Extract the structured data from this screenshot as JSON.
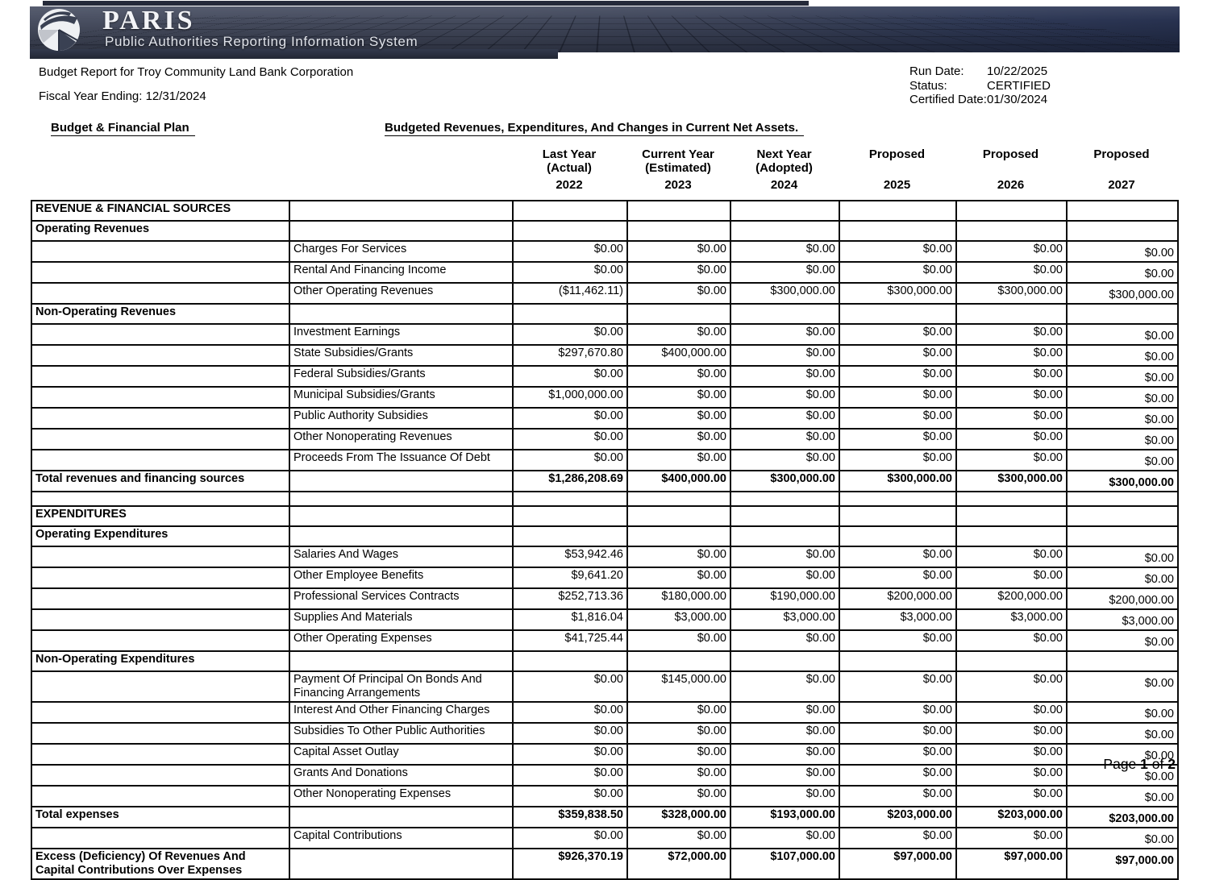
{
  "banner": {
    "title": "PARIS",
    "subtitle": "Public Authorities Reporting Information System",
    "colors": {
      "base": "#454b5d",
      "right_fade": "#283250",
      "grid_line": "#0e111b"
    }
  },
  "report": {
    "title": "Budget Report for Troy Community Land Bank Corporation",
    "fiscal_year": "Fiscal Year Ending: 12/31/2024",
    "meta": [
      {
        "label": "Run Date:",
        "value": "10/22/2025"
      },
      {
        "label": "Status:",
        "value": "CERTIFIED"
      },
      {
        "label": "Certified Date:",
        "value": "01/30/2024"
      }
    ]
  },
  "section": {
    "left_title": "Budget & Financial Plan",
    "right_title": "Budgeted Revenues, Expenditures, And Changes in Current Net Assets."
  },
  "columns": [
    {
      "line1": "Last Year",
      "line2": "(Actual)",
      "year": "2022"
    },
    {
      "line1": "Current Year",
      "line2": "(Estimated)",
      "year": "2023"
    },
    {
      "line1": "Next Year",
      "line2": "(Adopted)",
      "year": "2024"
    },
    {
      "line1": "Proposed",
      "line2": "",
      "year": "2025"
    },
    {
      "line1": "Proposed",
      "line2": "",
      "year": "2026"
    },
    {
      "line1": "Proposed",
      "line2": "",
      "year": "2027"
    }
  ],
  "table": {
    "years": [
      "2022",
      "2023",
      "2024",
      "2025",
      "2026",
      "2027"
    ],
    "rows": [
      {
        "type": "section",
        "label": "REVENUE & FINANCIAL SOURCES"
      },
      {
        "type": "section",
        "label": "Operating Revenues"
      },
      {
        "type": "item",
        "label": "Charges For Services",
        "values": [
          "$0.00",
          "$0.00",
          "$0.00",
          "$0.00",
          "$0.00",
          "$0.00"
        ]
      },
      {
        "type": "item",
        "label": "Rental And Financing Income",
        "values": [
          "$0.00",
          "$0.00",
          "$0.00",
          "$0.00",
          "$0.00",
          "$0.00"
        ]
      },
      {
        "type": "item",
        "label": "Other Operating Revenues",
        "values": [
          "($11,462.11)",
          "$0.00",
          "$300,000.00",
          "$300,000.00",
          "$300,000.00",
          "$300,000.00"
        ]
      },
      {
        "type": "section",
        "label": "Non-Operating Revenues"
      },
      {
        "type": "item",
        "label": "Investment Earnings",
        "values": [
          "$0.00",
          "$0.00",
          "$0.00",
          "$0.00",
          "$0.00",
          "$0.00"
        ]
      },
      {
        "type": "item",
        "label": "State Subsidies/Grants",
        "values": [
          "$297,670.80",
          "$400,000.00",
          "$0.00",
          "$0.00",
          "$0.00",
          "$0.00"
        ]
      },
      {
        "type": "item",
        "label": "Federal Subsidies/Grants",
        "values": [
          "$0.00",
          "$0.00",
          "$0.00",
          "$0.00",
          "$0.00",
          "$0.00"
        ]
      },
      {
        "type": "item",
        "label": "Municipal Subsidies/Grants",
        "values": [
          "$1,000,000.00",
          "$0.00",
          "$0.00",
          "$0.00",
          "$0.00",
          "$0.00"
        ]
      },
      {
        "type": "item",
        "label": "Public Authority Subsidies",
        "values": [
          "$0.00",
          "$0.00",
          "$0.00",
          "$0.00",
          "$0.00",
          "$0.00"
        ]
      },
      {
        "type": "item",
        "label": "Other Nonoperating Revenues",
        "values": [
          "$0.00",
          "$0.00",
          "$0.00",
          "$0.00",
          "$0.00",
          "$0.00"
        ]
      },
      {
        "type": "item",
        "label": "Proceeds From The Issuance Of Debt",
        "values": [
          "$0.00",
          "$0.00",
          "$0.00",
          "$0.00",
          "$0.00",
          "$0.00"
        ]
      },
      {
        "type": "total",
        "label": "Total revenues and financing sources",
        "values": [
          "$1,286,208.69",
          "$400,000.00",
          "$300,000.00",
          "$300,000.00",
          "$300,000.00",
          "$300,000.00"
        ]
      },
      {
        "type": "blank"
      },
      {
        "type": "section",
        "label": "EXPENDITURES"
      },
      {
        "type": "section",
        "label": "Operating Expenditures"
      },
      {
        "type": "item",
        "label": "Salaries And Wages",
        "values": [
          "$53,942.46",
          "$0.00",
          "$0.00",
          "$0.00",
          "$0.00",
          "$0.00"
        ]
      },
      {
        "type": "item",
        "label": "Other Employee Benefits",
        "values": [
          "$9,641.20",
          "$0.00",
          "$0.00",
          "$0.00",
          "$0.00",
          "$0.00"
        ]
      },
      {
        "type": "item",
        "label": "Professional Services Contracts",
        "values": [
          "$252,713.36",
          "$180,000.00",
          "$190,000.00",
          "$200,000.00",
          "$200,000.00",
          "$200,000.00"
        ]
      },
      {
        "type": "item",
        "label": "Supplies And Materials",
        "values": [
          "$1,816.04",
          "$3,000.00",
          "$3,000.00",
          "$3,000.00",
          "$3,000.00",
          "$3,000.00"
        ]
      },
      {
        "type": "item",
        "label": "Other Operating Expenses",
        "values": [
          "$41,725.44",
          "$0.00",
          "$0.00",
          "$0.00",
          "$0.00",
          "$0.00"
        ]
      },
      {
        "type": "section",
        "label": "Non-Operating Expenditures"
      },
      {
        "type": "item",
        "label": "Payment Of Principal On Bonds And Financing Arrangements",
        "values": [
          "$0.00",
          "$145,000.00",
          "$0.00",
          "$0.00",
          "$0.00",
          "$0.00"
        ]
      },
      {
        "type": "item",
        "label": "Interest And Other Financing Charges",
        "values": [
          "$0.00",
          "$0.00",
          "$0.00",
          "$0.00",
          "$0.00",
          "$0.00"
        ]
      },
      {
        "type": "item",
        "label": "Subsidies To Other Public Authorities",
        "values": [
          "$0.00",
          "$0.00",
          "$0.00",
          "$0.00",
          "$0.00",
          "$0.00"
        ]
      },
      {
        "type": "item",
        "label": "Capital Asset Outlay",
        "values": [
          "$0.00",
          "$0.00",
          "$0.00",
          "$0.00",
          "$0.00",
          "$0.00"
        ]
      },
      {
        "type": "item",
        "label": "Grants And Donations",
        "values": [
          "$0.00",
          "$0.00",
          "$0.00",
          "$0.00",
          "$0.00",
          "$0.00"
        ]
      },
      {
        "type": "item",
        "label": "Other Nonoperating Expenses",
        "values": [
          "$0.00",
          "$0.00",
          "$0.00",
          "$0.00",
          "$0.00",
          "$0.00"
        ]
      },
      {
        "type": "total",
        "label": "Total expenses",
        "values": [
          "$359,838.50",
          "$328,000.00",
          "$193,000.00",
          "$203,000.00",
          "$203,000.00",
          "$203,000.00"
        ]
      },
      {
        "type": "item",
        "label": "Capital Contributions",
        "values": [
          "$0.00",
          "$0.00",
          "$0.00",
          "$0.00",
          "$0.00",
          "$0.00"
        ]
      },
      {
        "type": "total",
        "label": "Excess (Deficiency) Of Revenues And Capital Contributions Over Expenses",
        "values": [
          "$926,370.19",
          "$72,000.00",
          "$107,000.00",
          "$97,000.00",
          "$97,000.00",
          "$97,000.00"
        ]
      }
    ]
  },
  "footer": {
    "label": "Page",
    "page": "1",
    "of": "of",
    "total": "2"
  }
}
